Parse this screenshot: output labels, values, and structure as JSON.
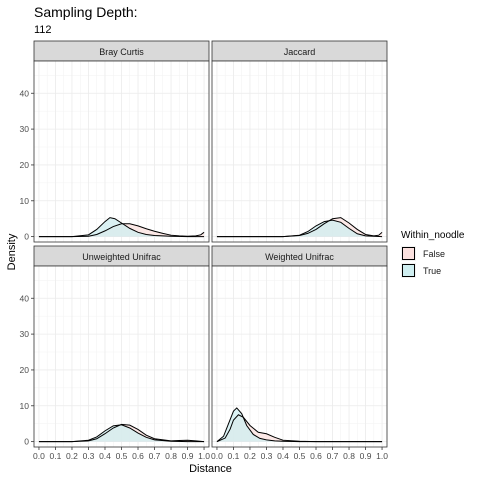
{
  "chart_data": {
    "type": "area",
    "title": "Sampling Depth:",
    "subtitle": "112",
    "xlabel": "Distance",
    "ylabel": "Density",
    "xlim": [
      -0.03,
      1.03
    ],
    "ylim": [
      -1.5,
      49
    ],
    "x_ticks": [
      "0.0",
      "0.1",
      "0.2",
      "0.3",
      "0.4",
      "0.5",
      "0.6",
      "0.7",
      "0.8",
      "0.9",
      "1.0"
    ],
    "y_ticks": [
      "0",
      "10",
      "20",
      "30",
      "40"
    ],
    "grid": true,
    "legend": {
      "title": "Within_noodle",
      "position": "right",
      "entries": [
        {
          "label": "False",
          "color": "#f8766d",
          "fill": "#fbe1df"
        },
        {
          "label": "True",
          "color": "#00bfc4",
          "fill": "#cfeef0"
        }
      ]
    },
    "panels": [
      {
        "name": "Bray Curtis",
        "series": [
          {
            "name": "False",
            "x": [
              0.0,
              0.1,
              0.2,
              0.3,
              0.35,
              0.4,
              0.45,
              0.5,
              0.55,
              0.6,
              0.65,
              0.7,
              0.75,
              0.8,
              0.85,
              0.9,
              0.95,
              0.98,
              1.0
            ],
            "y": [
              0,
              0,
              0,
              0.1,
              0.6,
              1.6,
              2.8,
              3.6,
              3.6,
              3.0,
              2.2,
              1.5,
              0.9,
              0.4,
              0.2,
              0.1,
              0.2,
              0.5,
              1.2
            ]
          },
          {
            "name": "True",
            "x": [
              0.0,
              0.1,
              0.2,
              0.3,
              0.35,
              0.4,
              0.43,
              0.46,
              0.5,
              0.55,
              0.6,
              0.65,
              0.7,
              0.8,
              0.9,
              1.0
            ],
            "y": [
              0,
              0,
              0,
              0.5,
              2.0,
              4.2,
              5.3,
              5.0,
              3.8,
              2.3,
              1.2,
              0.6,
              0.3,
              0.1,
              0,
              0
            ]
          }
        ]
      },
      {
        "name": "Jaccard",
        "series": [
          {
            "name": "False",
            "x": [
              0.0,
              0.2,
              0.4,
              0.5,
              0.55,
              0.6,
              0.65,
              0.7,
              0.75,
              0.8,
              0.85,
              0.9,
              0.95,
              0.98,
              1.0
            ],
            "y": [
              0,
              0,
              0,
              0.3,
              0.9,
              2.0,
              3.6,
              5.0,
              5.3,
              3.8,
              2.0,
              0.6,
              0.2,
              0.4,
              1.2
            ]
          },
          {
            "name": "True",
            "x": [
              0.0,
              0.2,
              0.4,
              0.5,
              0.55,
              0.6,
              0.65,
              0.7,
              0.75,
              0.8,
              0.85,
              0.9,
              1.0
            ],
            "y": [
              0,
              0,
              0,
              0.4,
              1.4,
              3.0,
              4.2,
              4.6,
              4.0,
              2.3,
              0.8,
              0.2,
              0
            ]
          }
        ]
      },
      {
        "name": "Unweighted Unifrac",
        "series": [
          {
            "name": "False",
            "x": [
              0.0,
              0.2,
              0.3,
              0.35,
              0.4,
              0.45,
              0.5,
              0.55,
              0.6,
              0.65,
              0.7,
              0.8,
              0.85,
              0.9,
              0.95,
              1.0
            ],
            "y": [
              0,
              0,
              0.2,
              0.8,
              2.2,
              3.8,
              4.8,
              4.6,
              3.4,
              1.8,
              0.8,
              0.2,
              0.3,
              0.4,
              0.2,
              0
            ]
          },
          {
            "name": "True",
            "x": [
              0.0,
              0.2,
              0.3,
              0.35,
              0.4,
              0.45,
              0.5,
              0.55,
              0.6,
              0.65,
              0.7,
              0.8,
              0.9,
              1.0
            ],
            "y": [
              0,
              0,
              0.4,
              1.3,
              3.0,
              4.4,
              4.7,
              3.8,
              2.4,
              1.2,
              0.5,
              0.1,
              0,
              0
            ]
          }
        ]
      },
      {
        "name": "Weighted Unifrac",
        "series": [
          {
            "name": "False",
            "x": [
              0.0,
              0.05,
              0.08,
              0.1,
              0.13,
              0.16,
              0.2,
              0.25,
              0.3,
              0.35,
              0.4,
              0.5,
              0.6,
              1.0
            ],
            "y": [
              0,
              1.0,
              3.5,
              6.0,
              7.5,
              6.8,
              4.5,
              2.6,
              2.2,
              1.2,
              0.4,
              0.1,
              0,
              0
            ]
          },
          {
            "name": "True",
            "x": [
              0.0,
              0.04,
              0.07,
              0.1,
              0.12,
              0.15,
              0.18,
              0.22,
              0.26,
              0.3,
              0.35,
              0.4,
              0.5,
              1.0
            ],
            "y": [
              0,
              1.5,
              5.0,
              8.5,
              9.4,
              7.8,
              4.5,
              2.0,
              0.9,
              0.5,
              0.2,
              0.1,
              0,
              0
            ]
          }
        ]
      }
    ]
  }
}
